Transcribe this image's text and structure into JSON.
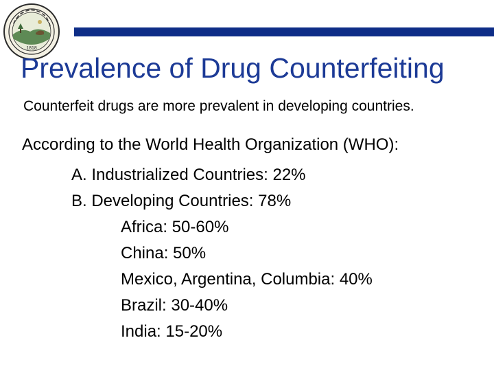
{
  "slide": {
    "title": "Prevalence of Drug Counterfeiting",
    "subtitle": "Counterfeit drugs are more prevalent in developing countries.",
    "intro": "According to the World Health Organization (WHO):",
    "items": [
      {
        "level": 1,
        "text": "A. Industrialized Countries: 22%"
      },
      {
        "level": 1,
        "text": "B. Developing Countries: 78%"
      },
      {
        "level": 2,
        "text": "Africa: 50-60%"
      },
      {
        "level": 2,
        "text": "China: 50%"
      },
      {
        "level": 2,
        "text": "Mexico, Argentina, Columbia: 40%"
      },
      {
        "level": 2,
        "text": "Brazil: 30-40%"
      },
      {
        "level": 2,
        "text": "India: 15-20%"
      }
    ]
  },
  "seal": {
    "year": "1818"
  },
  "colors": {
    "header_bar": "#0e2d87",
    "title": "#1c3a96",
    "seal_ring": "#2a2a2a",
    "seal_field": "#5e8a55",
    "seal_sky": "#e8ecd8"
  }
}
